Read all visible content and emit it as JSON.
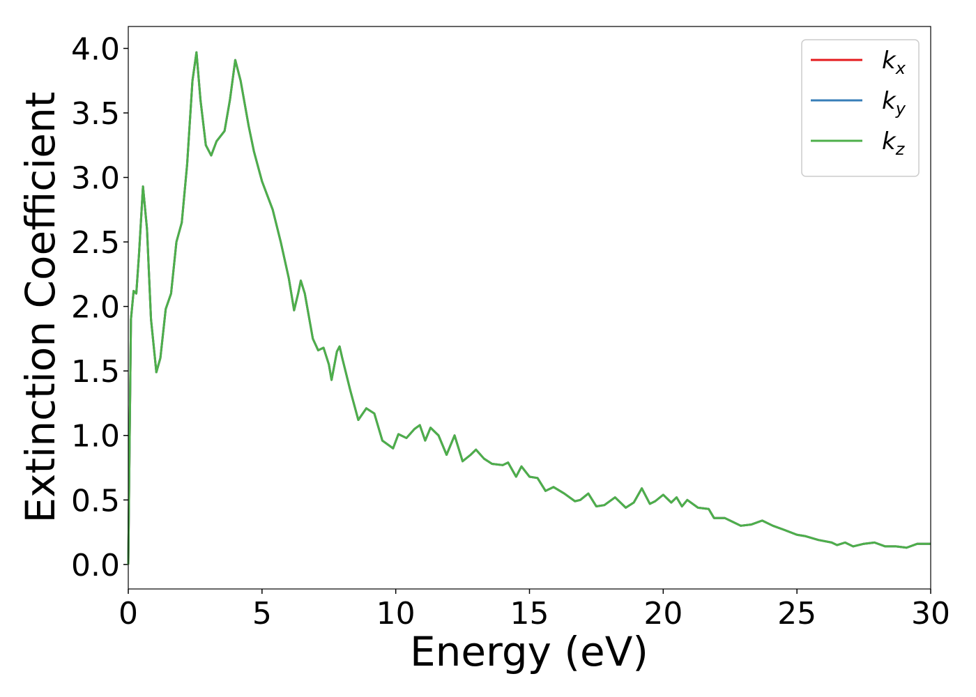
{
  "chart_data": {
    "type": "line",
    "xlabel": "Energy (eV)",
    "ylabel": "Extinction Coefficient",
    "x": [
      0,
      0.1,
      0.2,
      0.3,
      0.4,
      0.55,
      0.7,
      0.85,
      1.05,
      1.2,
      1.4,
      1.6,
      1.8,
      2.0,
      2.2,
      2.4,
      2.55,
      2.7,
      2.9,
      3.1,
      3.3,
      3.6,
      3.8,
      4.0,
      4.2,
      4.5,
      4.7,
      5.0,
      5.4,
      5.7,
      6.0,
      6.2,
      6.35,
      6.45,
      6.6,
      6.9,
      7.1,
      7.3,
      7.5,
      7.6,
      7.8,
      7.9,
      8.0,
      8.3,
      8.6,
      8.9,
      9.2,
      9.5,
      9.9,
      10.1,
      10.4,
      10.7,
      10.9,
      11.1,
      11.3,
      11.6,
      11.9,
      12.2,
      12.5,
      12.8,
      13.0,
      13.3,
      13.6,
      14.0,
      14.2,
      14.5,
      14.7,
      15.0,
      15.3,
      15.6,
      15.9,
      16.3,
      16.7,
      16.9,
      17.2,
      17.5,
      17.8,
      18.2,
      18.6,
      18.9,
      19.2,
      19.5,
      19.7,
      20.0,
      20.3,
      20.5,
      20.7,
      20.9,
      21.3,
      21.7,
      21.9,
      22.3,
      22.6,
      22.9,
      23.3,
      23.7,
      24.1,
      24.5,
      25.0,
      25.3,
      25.8,
      26.3,
      26.5,
      26.8,
      27.1,
      27.5,
      27.9,
      28.3,
      28.7,
      29.1,
      29.5,
      30
    ],
    "series": [
      {
        "name": "kx",
        "color": "#e41a1c",
        "values": [
          0,
          1.9,
          2.12,
          2.1,
          2.4,
          2.93,
          2.6,
          1.9,
          1.49,
          1.6,
          1.98,
          2.1,
          2.5,
          2.65,
          3.1,
          3.75,
          3.97,
          3.6,
          3.25,
          3.17,
          3.28,
          3.36,
          3.6,
          3.91,
          3.75,
          3.4,
          3.2,
          2.97,
          2.75,
          2.5,
          2.22,
          1.97,
          2.1,
          2.2,
          2.1,
          1.75,
          1.66,
          1.68,
          1.55,
          1.43,
          1.65,
          1.69,
          1.6,
          1.35,
          1.12,
          1.21,
          1.17,
          0.96,
          0.9,
          1.01,
          0.98,
          1.05,
          1.08,
          0.96,
          1.06,
          1.0,
          0.85,
          1.0,
          0.8,
          0.85,
          0.89,
          0.82,
          0.78,
          0.77,
          0.79,
          0.68,
          0.76,
          0.68,
          0.67,
          0.57,
          0.6,
          0.55,
          0.49,
          0.5,
          0.55,
          0.45,
          0.46,
          0.52,
          0.44,
          0.48,
          0.59,
          0.47,
          0.49,
          0.54,
          0.48,
          0.52,
          0.45,
          0.5,
          0.44,
          0.43,
          0.36,
          0.36,
          0.33,
          0.3,
          0.31,
          0.34,
          0.3,
          0.27,
          0.23,
          0.22,
          0.19,
          0.17,
          0.15,
          0.17,
          0.14,
          0.16,
          0.17,
          0.14,
          0.14,
          0.13,
          0.16,
          0.16
        ]
      },
      {
        "name": "ky",
        "color": "#377eb8",
        "values": [
          0,
          1.9,
          2.12,
          2.1,
          2.4,
          2.93,
          2.6,
          1.9,
          1.49,
          1.6,
          1.98,
          2.1,
          2.5,
          2.65,
          3.1,
          3.75,
          3.97,
          3.6,
          3.25,
          3.17,
          3.28,
          3.36,
          3.6,
          3.91,
          3.75,
          3.4,
          3.2,
          2.97,
          2.75,
          2.5,
          2.22,
          1.97,
          2.1,
          2.2,
          2.1,
          1.75,
          1.66,
          1.68,
          1.55,
          1.43,
          1.65,
          1.69,
          1.6,
          1.35,
          1.12,
          1.21,
          1.17,
          0.96,
          0.9,
          1.01,
          0.98,
          1.05,
          1.08,
          0.96,
          1.06,
          1.0,
          0.85,
          1.0,
          0.8,
          0.85,
          0.89,
          0.82,
          0.78,
          0.77,
          0.79,
          0.68,
          0.76,
          0.68,
          0.67,
          0.57,
          0.6,
          0.55,
          0.49,
          0.5,
          0.55,
          0.45,
          0.46,
          0.52,
          0.44,
          0.48,
          0.59,
          0.47,
          0.49,
          0.54,
          0.48,
          0.52,
          0.45,
          0.5,
          0.44,
          0.43,
          0.36,
          0.36,
          0.33,
          0.3,
          0.31,
          0.34,
          0.3,
          0.27,
          0.23,
          0.22,
          0.19,
          0.17,
          0.15,
          0.17,
          0.14,
          0.16,
          0.17,
          0.14,
          0.14,
          0.13,
          0.16,
          0.16
        ]
      },
      {
        "name": "kz",
        "color": "#4daf4a",
        "values": [
          0,
          1.9,
          2.12,
          2.1,
          2.4,
          2.93,
          2.6,
          1.9,
          1.49,
          1.6,
          1.98,
          2.1,
          2.5,
          2.65,
          3.1,
          3.75,
          3.97,
          3.6,
          3.25,
          3.17,
          3.28,
          3.36,
          3.6,
          3.91,
          3.75,
          3.4,
          3.2,
          2.97,
          2.75,
          2.5,
          2.22,
          1.97,
          2.1,
          2.2,
          2.1,
          1.75,
          1.66,
          1.68,
          1.55,
          1.43,
          1.65,
          1.69,
          1.6,
          1.35,
          1.12,
          1.21,
          1.17,
          0.96,
          0.9,
          1.01,
          0.98,
          1.05,
          1.08,
          0.96,
          1.06,
          1.0,
          0.85,
          1.0,
          0.8,
          0.85,
          0.89,
          0.82,
          0.78,
          0.77,
          0.79,
          0.68,
          0.76,
          0.68,
          0.67,
          0.57,
          0.6,
          0.55,
          0.49,
          0.5,
          0.55,
          0.45,
          0.46,
          0.52,
          0.44,
          0.48,
          0.59,
          0.47,
          0.49,
          0.54,
          0.48,
          0.52,
          0.45,
          0.5,
          0.44,
          0.43,
          0.36,
          0.36,
          0.33,
          0.3,
          0.31,
          0.34,
          0.3,
          0.27,
          0.23,
          0.22,
          0.19,
          0.17,
          0.15,
          0.17,
          0.14,
          0.16,
          0.17,
          0.14,
          0.14,
          0.13,
          0.16,
          0.16
        ]
      }
    ],
    "xlim": [
      0,
      30
    ],
    "xticks": [
      0,
      5,
      10,
      15,
      20,
      25,
      30
    ],
    "ylim": [
      -0.19,
      4.17
    ],
    "yticks": [
      {
        "value": 0,
        "label": "0.0"
      },
      0.5,
      {
        "value": 1,
        "label": "1.0"
      },
      1.5,
      {
        "value": 2,
        "label": "2.0"
      },
      2.5,
      {
        "value": 3,
        "label": "3.0"
      },
      3.5,
      {
        "value": 4,
        "label": "4.0"
      }
    ],
    "legend": "upper right"
  }
}
